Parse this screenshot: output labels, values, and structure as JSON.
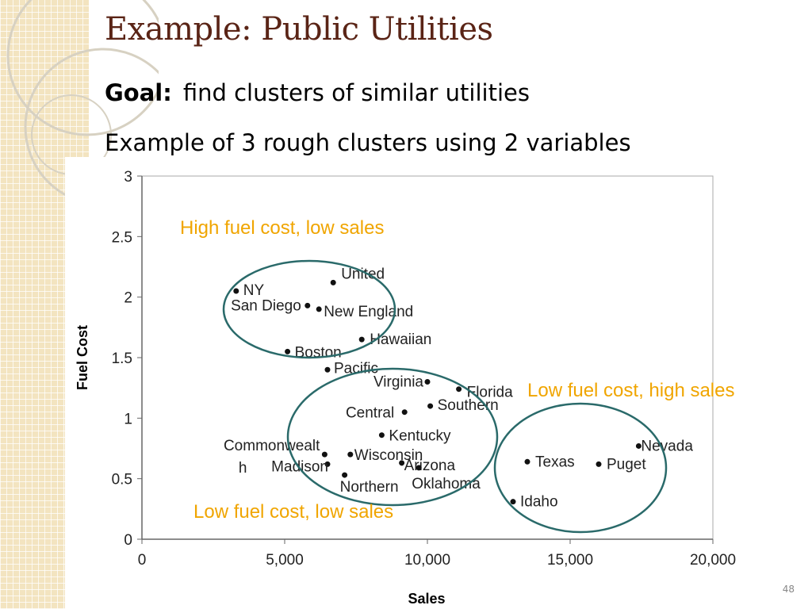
{
  "slide": {
    "title": "Example: Public Utilities",
    "goal_label": "Goal:",
    "goal_text": "find clusters of similar utilities",
    "subtitle": "Example of 3 rough clusters using 2 variables",
    "page_number": "48"
  },
  "chart_data": {
    "type": "scatter",
    "xlabel": "Sales",
    "ylabel": "Fuel Cost",
    "xlim": [
      0,
      20000
    ],
    "ylim": [
      0,
      3
    ],
    "x_ticks": [
      "0",
      "5,000",
      "10,000",
      "15,000",
      "20,000"
    ],
    "y_ticks": [
      "0",
      "0.5",
      "1",
      "1.5",
      "2",
      "2.5",
      "3"
    ],
    "grid": false,
    "points": [
      {
        "label": "NY",
        "x": 3300,
        "y": 2.05
      },
      {
        "label": "United",
        "x": 6700,
        "y": 2.12
      },
      {
        "label": "San Diego",
        "x": 5800,
        "y": 1.93
      },
      {
        "label": "New England",
        "x": 6200,
        "y": 1.9
      },
      {
        "label": "Hawaiian",
        "x": 7700,
        "y": 1.65
      },
      {
        "label": "Boston",
        "x": 5100,
        "y": 1.55
      },
      {
        "label": "Pacific",
        "x": 6500,
        "y": 1.4
      },
      {
        "label": "Virginia",
        "x": 10000,
        "y": 1.3
      },
      {
        "label": "Florida",
        "x": 11100,
        "y": 1.24
      },
      {
        "label": "Southern",
        "x": 10100,
        "y": 1.1
      },
      {
        "label": "Central",
        "x": 9200,
        "y": 1.05
      },
      {
        "label": "Kentucky",
        "x": 8400,
        "y": 0.86
      },
      {
        "label": "Commonwealth",
        "x": 6400,
        "y": 0.7
      },
      {
        "label": "Wisconsin",
        "x": 7300,
        "y": 0.7
      },
      {
        "label": "Madison",
        "x": 6500,
        "y": 0.62
      },
      {
        "label": "Arizona",
        "x": 9100,
        "y": 0.63
      },
      {
        "label": "Oklahoma",
        "x": 9700,
        "y": 0.59
      },
      {
        "label": "Northern",
        "x": 7100,
        "y": 0.53
      },
      {
        "label": "Texas",
        "x": 13500,
        "y": 0.64
      },
      {
        "label": "Puget",
        "x": 16000,
        "y": 0.62
      },
      {
        "label": "Nevada",
        "x": 17400,
        "y": 0.77
      },
      {
        "label": "Idaho",
        "x": 13000,
        "y": 0.31
      }
    ],
    "cluster_annotations": [
      "High fuel cost, low sales",
      "Low fuel cost, high sales",
      "Low fuel cost, low sales"
    ],
    "cluster_color": "#2a6a6a",
    "annotation_color": "#f0a500"
  }
}
